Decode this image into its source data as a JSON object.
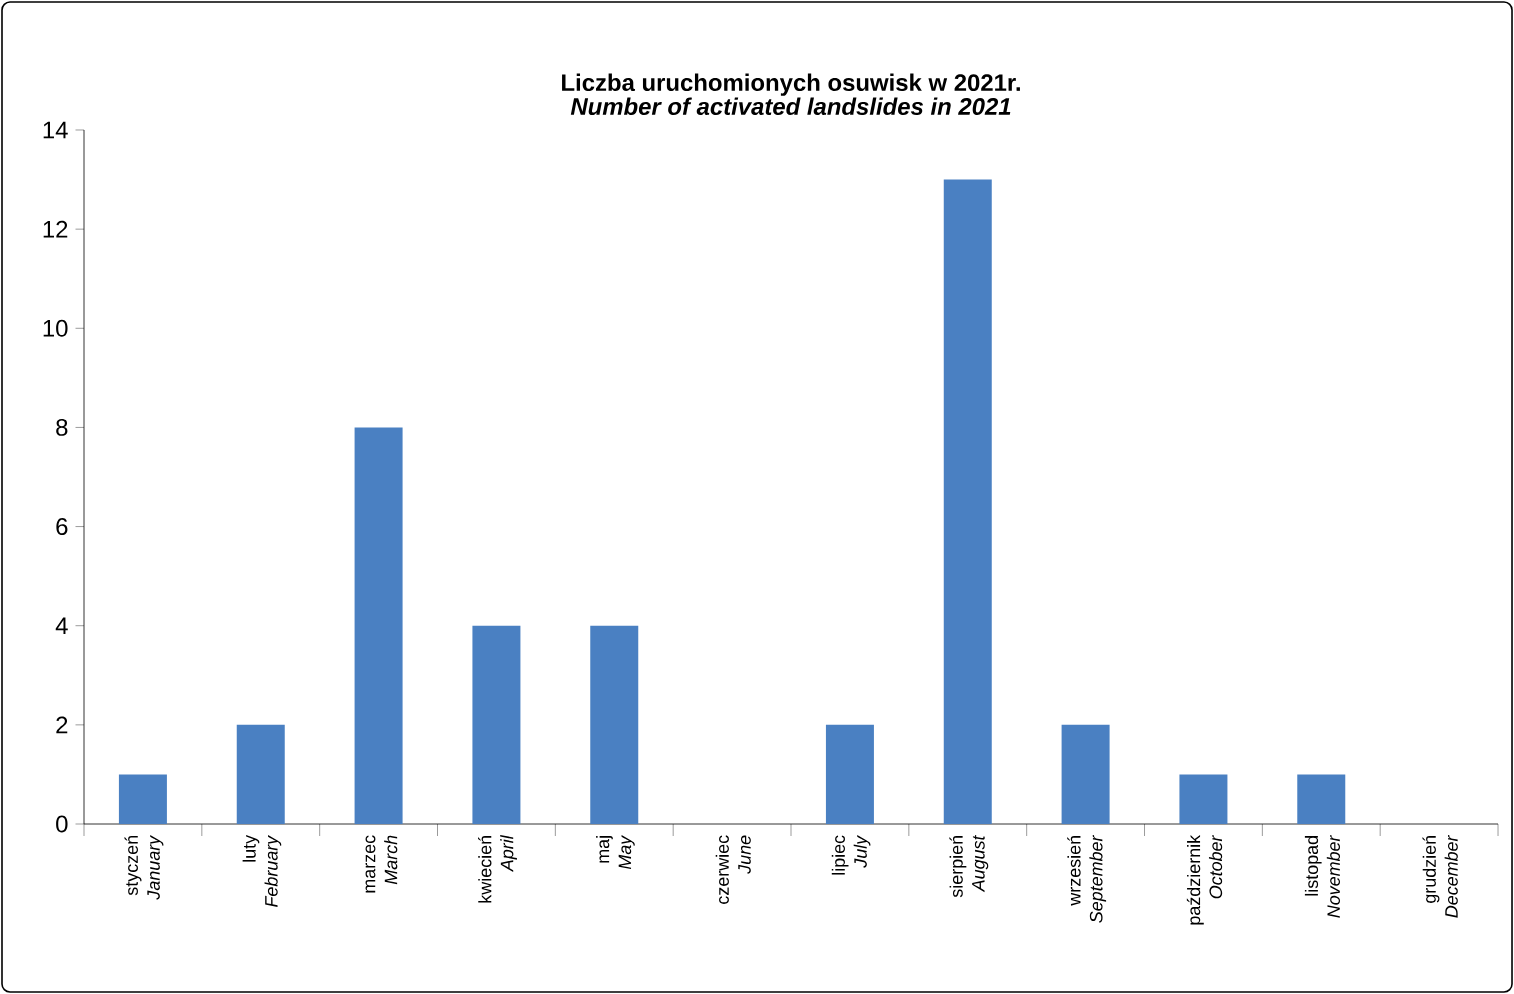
{
  "chart_data": {
    "type": "bar",
    "title": "Liczba uruchomionych osuwisk w 2021r.",
    "subtitle": "Number of activated landslides in 2021",
    "categories": [
      "styczeń *January*",
      "luty *February*",
      "marzec *March*",
      "kwiecień *April*",
      "maj *May*",
      "czerwiec *June*",
      "lipiec *July*",
      "sierpień *August*",
      "wrzesień *September*",
      "październik *October*",
      "listopad *November*",
      "grudzień *December*"
    ],
    "values": [
      1,
      2,
      8,
      4,
      4,
      0,
      2,
      13,
      2,
      1,
      1,
      0
    ],
    "color": "#4a80c2",
    "ylim": [
      0,
      14
    ],
    "yticks": [
      0,
      2,
      4,
      6,
      8,
      10,
      12,
      14
    ],
    "grid": false
  }
}
